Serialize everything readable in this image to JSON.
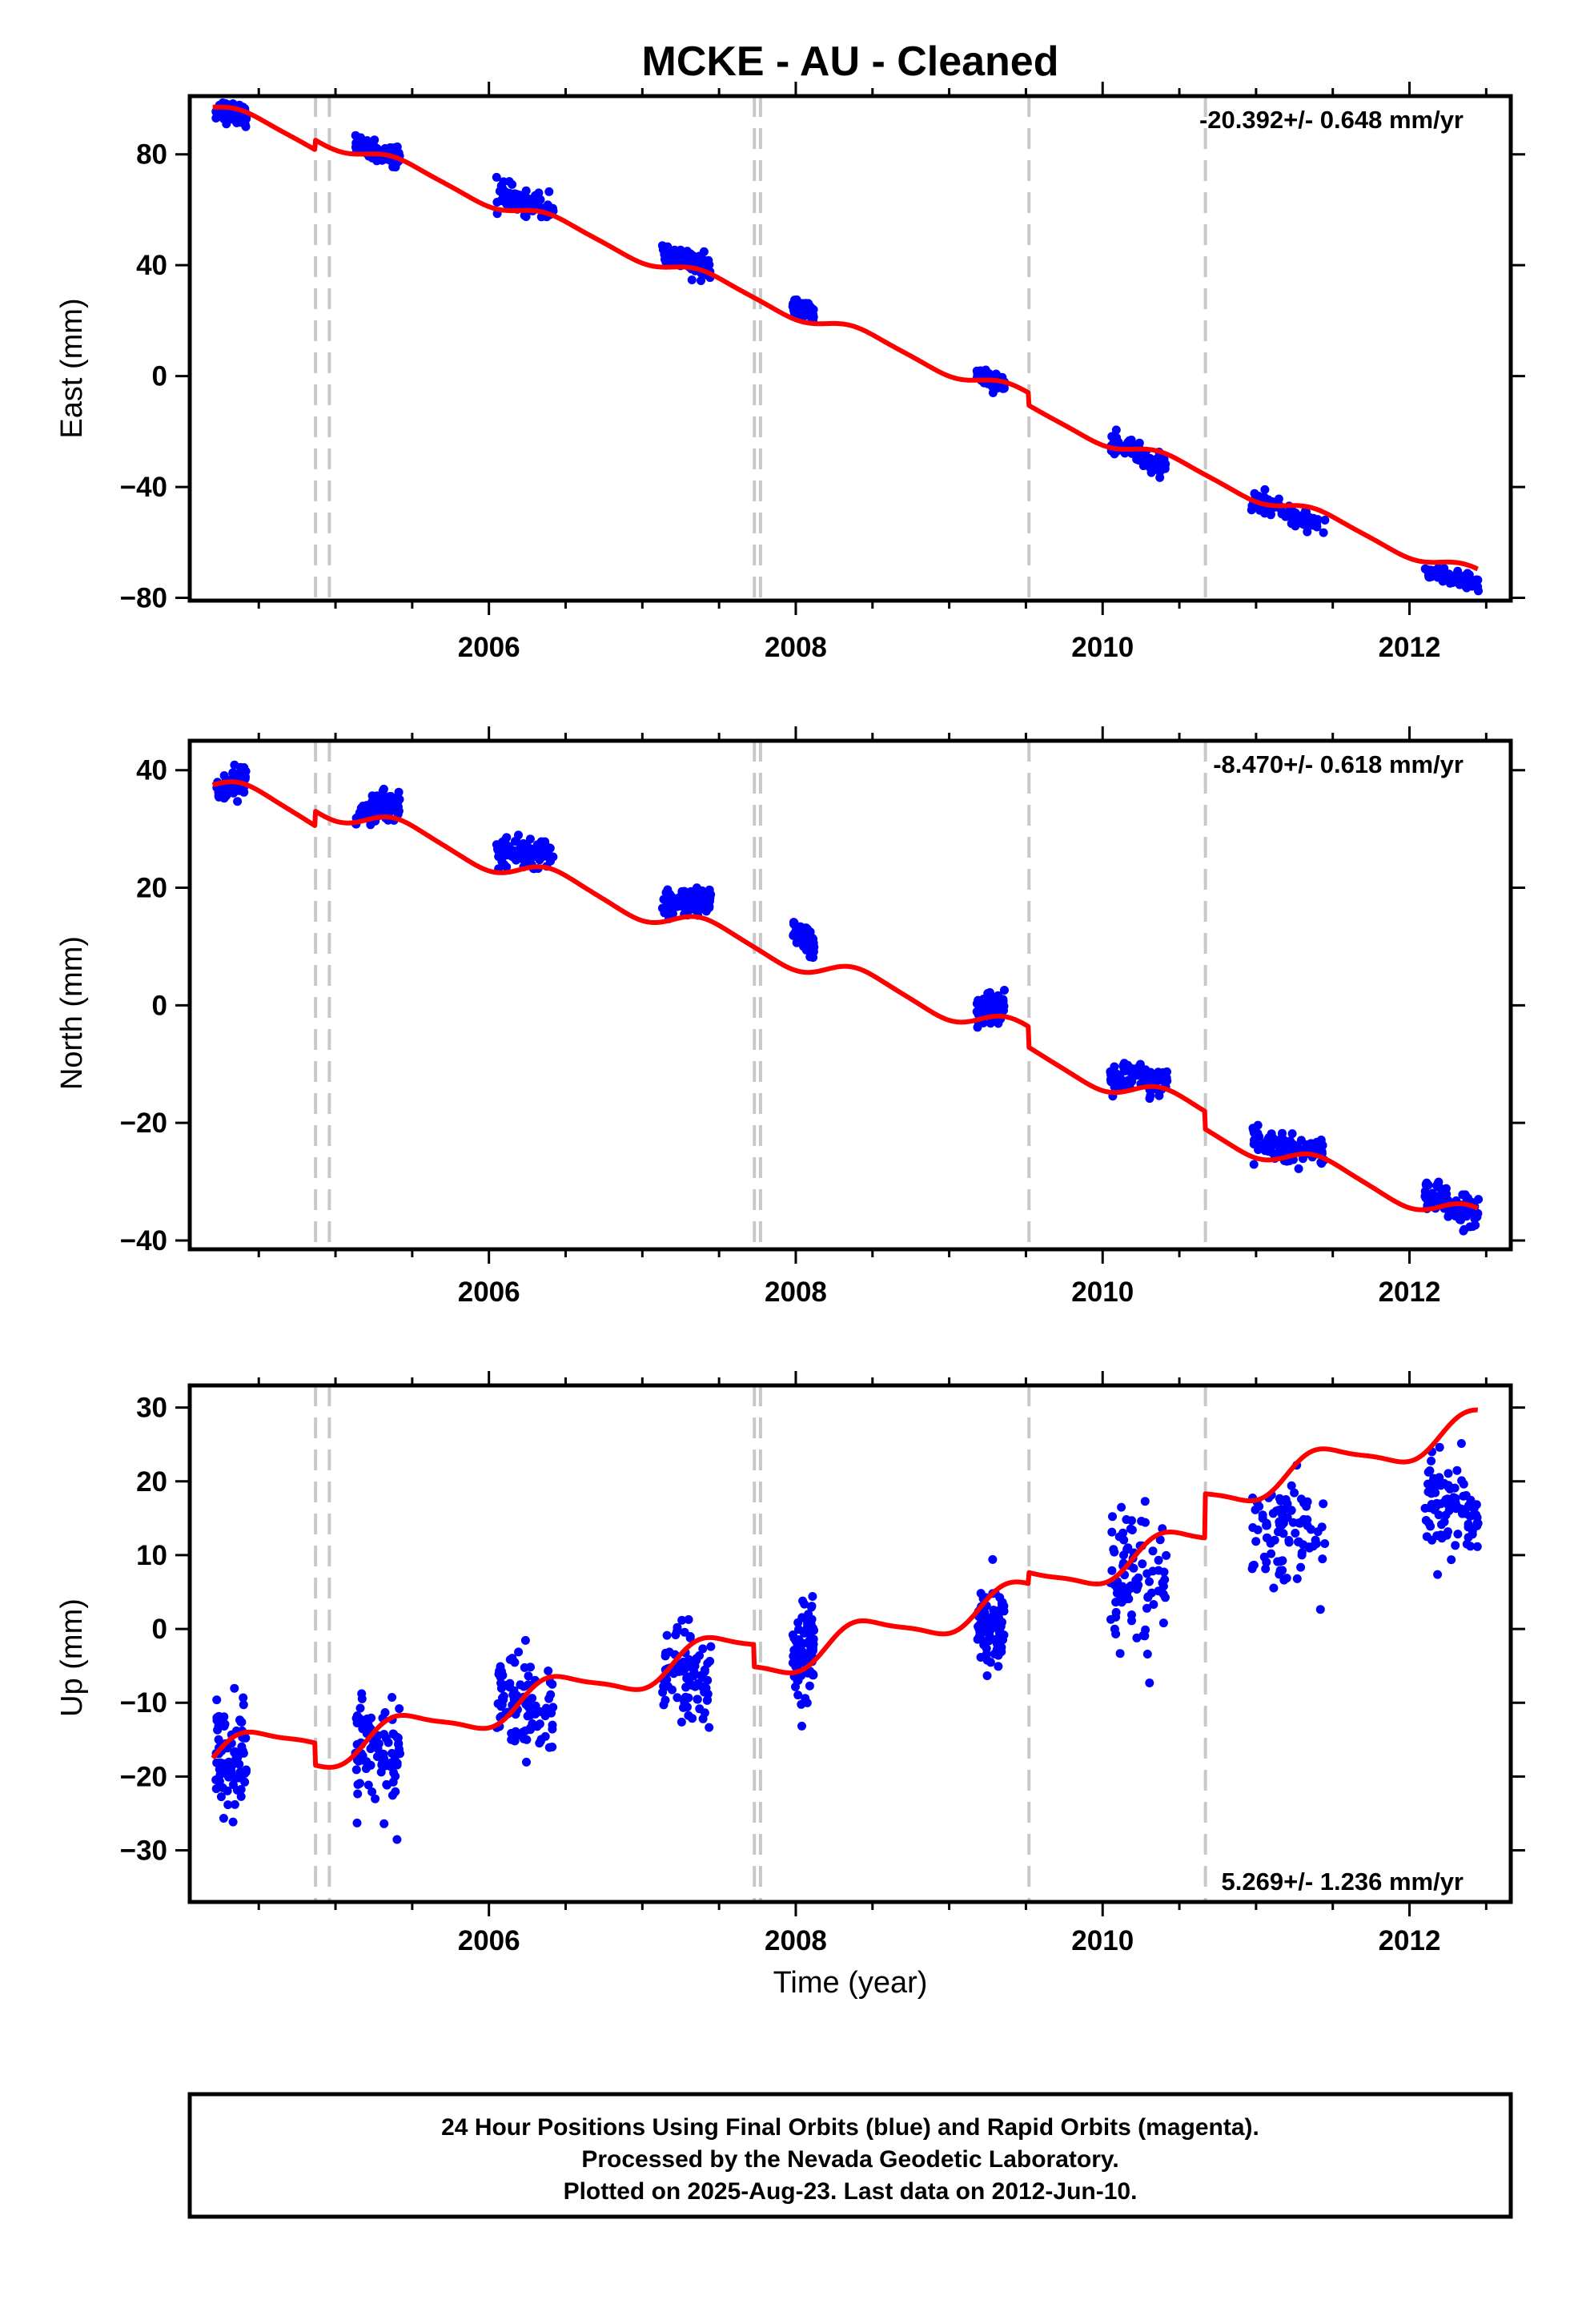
{
  "title": "MCKE  - AU - Cleaned",
  "xlabel": "Time (year)",
  "colors": {
    "data": "#0000ff",
    "model": "#ff0000",
    "events": "#c8c8c8",
    "frame": "#000000"
  },
  "footer": {
    "line1": "24 Hour Positions Using Final Orbits (blue) and Rapid Orbits (magenta).",
    "line2": "Processed by the Nevada Geodetic Laboratory.",
    "line3": "Plotted on 2025-Aug-23. Last data on 2012-Jun-10."
  },
  "chart_data": [
    {
      "type": "scatter",
      "ylabel": "East (mm)",
      "rate_label": "-20.392+/- 0.648 mm/yr",
      "xlim": [
        2004.05,
        2012.66
      ],
      "ylim": [
        -81,
        101
      ],
      "x_ticks": [
        "2006",
        "2008",
        "2010",
        "2012"
      ],
      "y_ticks": [
        "80",
        "40",
        "0",
        "-40",
        "-80"
      ],
      "event_lines": [
        2004.87,
        2004.96,
        2007.73,
        2007.77,
        2009.52,
        2010.67
      ],
      "data_clusters": [
        {
          "x_start": 2004.22,
          "x_end": 2004.42,
          "y_start": 96,
          "y_end": 94,
          "spread": 3
        },
        {
          "x_start": 2005.13,
          "x_end": 2005.42,
          "y_start": 83,
          "y_end": 79,
          "spread": 3
        },
        {
          "x_start": 2006.05,
          "x_end": 2006.42,
          "y_start": 66,
          "y_end": 60,
          "spread": 3.5
        },
        {
          "x_start": 2007.13,
          "x_end": 2007.45,
          "y_start": 45,
          "y_end": 38,
          "spread": 3.5
        },
        {
          "x_start": 2007.98,
          "x_end": 2008.12,
          "y_start": 25,
          "y_end": 23,
          "spread": 2
        },
        {
          "x_start": 2009.18,
          "x_end": 2009.36,
          "y_start": 0,
          "y_end": -3,
          "spread": 2.5
        },
        {
          "x_start": 2010.05,
          "x_end": 2010.42,
          "y_start": -24,
          "y_end": -33,
          "spread": 3
        },
        {
          "x_start": 2010.97,
          "x_end": 2011.45,
          "y_start": -45,
          "y_end": -54,
          "spread": 3
        },
        {
          "x_start": 2012.1,
          "x_end": 2012.45,
          "y_start": -70,
          "y_end": -75,
          "spread": 2
        }
      ],
      "model": {
        "x0": 2004.2,
        "y0": 97,
        "rate": -20.392,
        "amp1": 2.5,
        "amp2": 0.5,
        "offsets": [
          {
            "x": 2004.87,
            "dy": 3.5
          },
          {
            "x": 2009.52,
            "dy": -4.5
          }
        ]
      }
    },
    {
      "type": "scatter",
      "ylabel": "North (mm)",
      "rate_label": "-8.470+/- 0.618 mm/yr",
      "xlim": [
        2004.05,
        2012.66
      ],
      "ylim": [
        -41.5,
        45
      ],
      "x_ticks": [
        "2006",
        "2008",
        "2010",
        "2012"
      ],
      "y_ticks": [
        "40",
        "20",
        "0",
        "-20",
        "-40"
      ],
      "event_lines": [
        2004.87,
        2004.96,
        2007.73,
        2007.77,
        2009.52,
        2010.67
      ],
      "data_clusters": [
        {
          "x_start": 2004.22,
          "x_end": 2004.42,
          "y_start": 36,
          "y_end": 39,
          "spread": 2
        },
        {
          "x_start": 2005.13,
          "x_end": 2005.42,
          "y_start": 32,
          "y_end": 35,
          "spread": 2
        },
        {
          "x_start": 2006.05,
          "x_end": 2006.42,
          "y_start": 26,
          "y_end": 25,
          "spread": 2.5
        },
        {
          "x_start": 2007.13,
          "x_end": 2007.45,
          "y_start": 17,
          "y_end": 18,
          "spread": 2
        },
        {
          "x_start": 2007.98,
          "x_end": 2008.12,
          "y_start": 13,
          "y_end": 10,
          "spread": 1.5
        },
        {
          "x_start": 2009.18,
          "x_end": 2009.36,
          "y_start": -1,
          "y_end": 0,
          "spread": 2
        },
        {
          "x_start": 2010.05,
          "x_end": 2010.42,
          "y_start": -12,
          "y_end": -13,
          "spread": 2
        },
        {
          "x_start": 2010.97,
          "x_end": 2011.45,
          "y_start": -23,
          "y_end": -25,
          "spread": 2
        },
        {
          "x_start": 2012.1,
          "x_end": 2012.45,
          "y_start": -32,
          "y_end": -36,
          "spread": 2.5
        }
      ],
      "model": {
        "x0": 2004.2,
        "y0": 37.5,
        "rate": -8.47,
        "amp1": 1.8,
        "amp2": 0.3,
        "offsets": [
          {
            "x": 2004.87,
            "dy": 2.5
          },
          {
            "x": 2009.52,
            "dy": -3.5
          },
          {
            "x": 2010.67,
            "dy": -3
          }
        ]
      }
    },
    {
      "type": "scatter",
      "ylabel": "Up (mm)",
      "rate_label": "5.269+/- 1.236 mm/yr",
      "xlim": [
        2004.05,
        2012.66
      ],
      "ylim": [
        -37,
        33
      ],
      "x_ticks": [
        "2006",
        "2008",
        "2010",
        "2012"
      ],
      "y_ticks": [
        "30",
        "20",
        "10",
        "0",
        "-10",
        "-20",
        "-30"
      ],
      "event_lines": [
        2004.87,
        2004.96,
        2007.73,
        2007.77,
        2009.52,
        2010.67
      ],
      "data_clusters": [
        {
          "x_start": 2004.22,
          "x_end": 2004.42,
          "y_start": -16,
          "y_end": -19,
          "spread": 6
        },
        {
          "x_start": 2005.13,
          "x_end": 2005.42,
          "y_start": -16,
          "y_end": -19,
          "spread": 7
        },
        {
          "x_start": 2006.05,
          "x_end": 2006.42,
          "y_start": -9,
          "y_end": -12,
          "spread": 6
        },
        {
          "x_start": 2007.13,
          "x_end": 2007.45,
          "y_start": -6,
          "y_end": -7,
          "spread": 6
        },
        {
          "x_start": 2007.98,
          "x_end": 2008.12,
          "y_start": -5,
          "y_end": -3,
          "spread": 5
        },
        {
          "x_start": 2009.18,
          "x_end": 2009.36,
          "y_start": 0,
          "y_end": 0,
          "spread": 5
        },
        {
          "x_start": 2010.05,
          "x_end": 2010.42,
          "y_start": 8,
          "y_end": 6,
          "spread": 7
        },
        {
          "x_start": 2010.97,
          "x_end": 2011.45,
          "y_start": 15,
          "y_end": 12,
          "spread": 6
        },
        {
          "x_start": 2012.1,
          "x_end": 2012.45,
          "y_start": 18,
          "y_end": 16,
          "spread": 5
        }
      ],
      "model": {
        "x0": 2004.2,
        "y0": -17.5,
        "rate": 5.269,
        "amp1": 2.2,
        "amp2": 0.5,
        "offsets": [
          {
            "x": 2004.87,
            "dy": -3
          },
          {
            "x": 2007.73,
            "dy": -3
          },
          {
            "x": 2009.52,
            "dy": 1.5
          },
          {
            "x": 2010.67,
            "dy": 6
          }
        ]
      }
    }
  ]
}
